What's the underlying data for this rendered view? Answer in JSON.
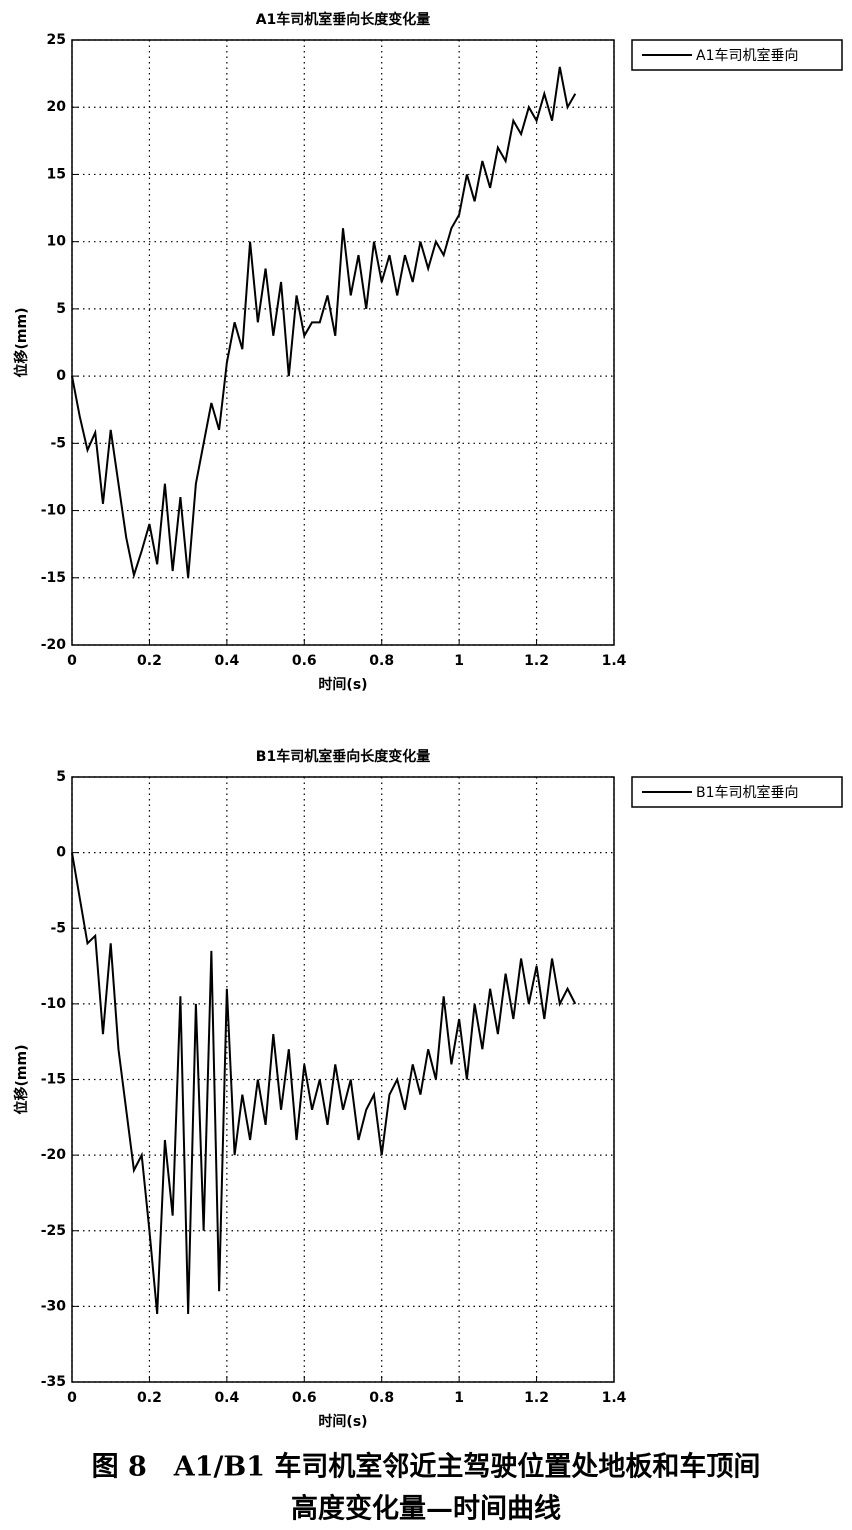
{
  "chart_data": [
    {
      "type": "line",
      "title": "A1车司机室垂向长度变化量",
      "xlabel": "时间(s)",
      "ylabel": "位移(mm)",
      "x": [
        0,
        0.02,
        0.04,
        0.06,
        0.08,
        0.1,
        0.12,
        0.14,
        0.16,
        0.18,
        0.2,
        0.22,
        0.24,
        0.26,
        0.28,
        0.3,
        0.32,
        0.34,
        0.36,
        0.38,
        0.4,
        0.42,
        0.44,
        0.46,
        0.48,
        0.5,
        0.52,
        0.54,
        0.56,
        0.58,
        0.6,
        0.62,
        0.64,
        0.66,
        0.68,
        0.7,
        0.72,
        0.74,
        0.76,
        0.78,
        0.8,
        0.82,
        0.84,
        0.86,
        0.88,
        0.9,
        0.92,
        0.94,
        0.96,
        0.98,
        1.0,
        1.02,
        1.04,
        1.06,
        1.08,
        1.1,
        1.12,
        1.14,
        1.16,
        1.18,
        1.2,
        1.22,
        1.24,
        1.26,
        1.28,
        1.3
      ],
      "series": [
        {
          "name": "A1车司机室垂向",
          "color": "#000000",
          "values": [
            0,
            -3,
            -5.5,
            -4.2,
            -9.5,
            -4,
            -8,
            -12,
            -14.8,
            -13,
            -11,
            -14,
            -8,
            -14.5,
            -9,
            -15,
            -8,
            -5,
            -2,
            -4,
            1,
            4,
            2,
            10,
            4,
            8,
            3,
            7,
            0,
            6,
            3,
            4,
            4,
            6,
            3,
            11,
            6,
            9,
            5,
            10,
            7,
            9,
            6,
            9,
            7,
            10,
            8,
            10,
            9,
            11,
            12,
            15,
            13,
            16,
            14,
            17,
            16,
            19,
            18,
            20,
            19,
            21,
            19,
            23,
            20,
            21
          ]
        }
      ],
      "xlim": [
        0,
        1.4
      ],
      "xticks": [
        0,
        0.2,
        0.4,
        0.6,
        0.8,
        1,
        1.2,
        1.4
      ],
      "ylim": [
        -20,
        25
      ],
      "yticks": [
        -20,
        -15,
        -10,
        -5,
        0,
        5,
        10,
        15,
        20,
        25
      ],
      "grid": true,
      "legend": "upper right outside"
    },
    {
      "type": "line",
      "title": "B1车司机室垂向长度变化量",
      "xlabel": "时间(s)",
      "ylabel": "位移(mm)",
      "x": [
        0,
        0.02,
        0.04,
        0.06,
        0.08,
        0.1,
        0.12,
        0.14,
        0.16,
        0.18,
        0.2,
        0.22,
        0.24,
        0.26,
        0.28,
        0.3,
        0.32,
        0.34,
        0.36,
        0.38,
        0.4,
        0.42,
        0.44,
        0.46,
        0.48,
        0.5,
        0.52,
        0.54,
        0.56,
        0.58,
        0.6,
        0.62,
        0.64,
        0.66,
        0.68,
        0.7,
        0.72,
        0.74,
        0.76,
        0.78,
        0.8,
        0.82,
        0.84,
        0.86,
        0.88,
        0.9,
        0.92,
        0.94,
        0.96,
        0.98,
        1.0,
        1.02,
        1.04,
        1.06,
        1.08,
        1.1,
        1.12,
        1.14,
        1.16,
        1.18,
        1.2,
        1.22,
        1.24,
        1.26,
        1.28,
        1.3
      ],
      "series": [
        {
          "name": "B1车司机室垂向",
          "color": "#000000",
          "values": [
            0,
            -3,
            -6,
            -5.5,
            -12,
            -6,
            -13,
            -17,
            -21,
            -20,
            -25,
            -30.5,
            -19,
            -24,
            -9.5,
            -30.5,
            -10,
            -25,
            -6.5,
            -29,
            -9,
            -20,
            -16,
            -19,
            -15,
            -18,
            -12,
            -17,
            -13,
            -19,
            -14,
            -17,
            -15,
            -18,
            -14,
            -17,
            -15,
            -19,
            -17,
            -16,
            -20,
            -16,
            -15,
            -17,
            -14,
            -16,
            -13,
            -15,
            -9.5,
            -14,
            -11,
            -15,
            -10,
            -13,
            -9,
            -12,
            -8,
            -11,
            -7,
            -10,
            -7.5,
            -11,
            -7,
            -10,
            -9,
            -10
          ]
        }
      ],
      "xlim": [
        0,
        1.4
      ],
      "xticks": [
        0,
        0.2,
        0.4,
        0.6,
        0.8,
        1,
        1.2,
        1.4
      ],
      "ylim": [
        -35,
        5
      ],
      "yticks": [
        -35,
        -30,
        -25,
        -20,
        -15,
        -10,
        -5,
        0,
        5
      ],
      "grid": true,
      "legend": "upper right outside"
    }
  ],
  "figure_caption": [
    "图 8　A1/B1 车司机室邻近主驾驶位置处地板和车顶间",
    "高度变化量—时间曲线"
  ]
}
